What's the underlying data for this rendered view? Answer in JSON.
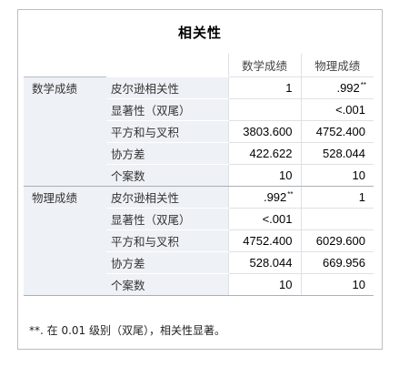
{
  "title": "相关性",
  "columns": [
    "数学成绩",
    "物理成绩"
  ],
  "rows": [
    {
      "group": "数学成绩",
      "stat": "皮尔逊相关性",
      "v1": "1",
      "v1sup": "",
      "v2": ".992",
      "v2sup": "**"
    },
    {
      "group": "",
      "stat": "显著性（双尾）",
      "v1": "",
      "v1sup": "",
      "v2": "<.001",
      "v2sup": ""
    },
    {
      "group": "",
      "stat": "平方和与叉积",
      "v1": "3803.600",
      "v1sup": "",
      "v2": "4752.400",
      "v2sup": ""
    },
    {
      "group": "",
      "stat": "协方差",
      "v1": "422.622",
      "v1sup": "",
      "v2": "528.044",
      "v2sup": ""
    },
    {
      "group": "",
      "stat": "个案数",
      "v1": "10",
      "v1sup": "",
      "v2": "10",
      "v2sup": ""
    },
    {
      "group": "物理成绩",
      "stat": "皮尔逊相关性",
      "v1": ".992",
      "v1sup": "**",
      "v2": "1",
      "v2sup": ""
    },
    {
      "group": "",
      "stat": "显著性（双尾）",
      "v1": "<.001",
      "v1sup": "",
      "v2": "",
      "v2sup": ""
    },
    {
      "group": "",
      "stat": "平方和与叉积",
      "v1": "4752.400",
      "v1sup": "",
      "v2": "6029.600",
      "v2sup": ""
    },
    {
      "group": "",
      "stat": "协方差",
      "v1": "528.044",
      "v1sup": "",
      "v2": "669.956",
      "v2sup": ""
    },
    {
      "group": "",
      "stat": "个案数",
      "v1": "10",
      "v1sup": "",
      "v2": "10",
      "v2sup": ""
    }
  ],
  "footnote": "**. 在 0.01 级别（双尾），相关性显著。",
  "colors": {
    "label_bg": "#eef1f5",
    "border": "#bdbdbd"
  }
}
